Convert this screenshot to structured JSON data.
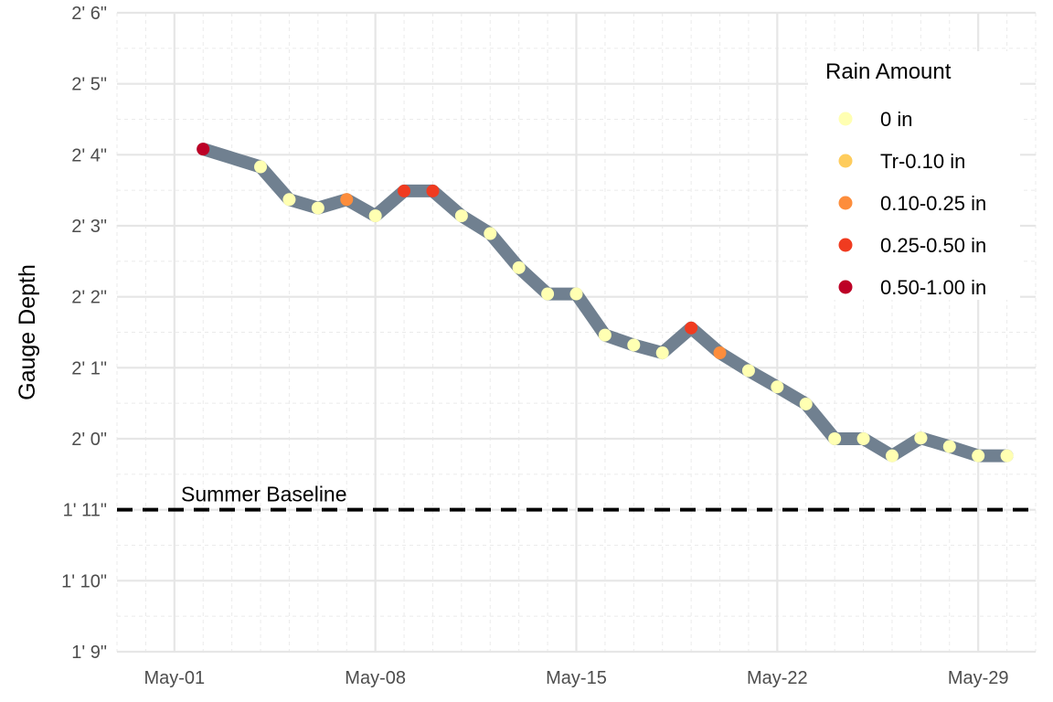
{
  "chart_data": {
    "type": "line",
    "title": "",
    "ylabel": "Gauge Depth",
    "xlabel": "",
    "y_unit": "inches",
    "ylim": [
      21,
      30
    ],
    "xlim": [
      "2024-04-29",
      "2024-05-31"
    ],
    "x_ticks": [
      {
        "date": "2024-05-01",
        "label": "May-01"
      },
      {
        "date": "2024-05-08",
        "label": "May-08"
      },
      {
        "date": "2024-05-15",
        "label": "May-15"
      },
      {
        "date": "2024-05-22",
        "label": "May-22"
      },
      {
        "date": "2024-05-29",
        "label": "May-29"
      }
    ],
    "y_ticks": [
      {
        "value": 21,
        "label": "1' 9\""
      },
      {
        "value": 22,
        "label": "1' 10\""
      },
      {
        "value": 23,
        "label": "1' 11\""
      },
      {
        "value": 24,
        "label": "2' 0\""
      },
      {
        "value": 25,
        "label": "2' 1\""
      },
      {
        "value": 26,
        "label": "2' 2\""
      },
      {
        "value": 27,
        "label": "2' 3\""
      },
      {
        "value": 28,
        "label": "2' 4\""
      },
      {
        "value": 29,
        "label": "2' 5\""
      },
      {
        "value": 30,
        "label": "2' 6\""
      }
    ],
    "grid": true,
    "line_color": "#708090",
    "baseline": {
      "value": 23,
      "label": "Summer Baseline",
      "color": "#000000"
    },
    "legend": {
      "title": "Rain Amount",
      "position": "top-right",
      "items": [
        {
          "key": "0",
          "label": "0 in",
          "color": "#FFFFB2"
        },
        {
          "key": "tr",
          "label": "Tr-0.10 in",
          "color": "#FECC5C"
        },
        {
          "key": "low",
          "label": "0.10-0.25 in",
          "color": "#FD8D3C"
        },
        {
          "key": "mid",
          "label": "0.25-0.50 in",
          "color": "#F03B20"
        },
        {
          "key": "high",
          "label": "0.50-1.00 in",
          "color": "#BD0026"
        }
      ]
    },
    "points": [
      {
        "date": "2024-05-02",
        "depth": 28.08,
        "rain": "high"
      },
      {
        "date": "2024-05-04",
        "depth": 27.83,
        "rain": "0"
      },
      {
        "date": "2024-05-05",
        "depth": 27.37,
        "rain": "0"
      },
      {
        "date": "2024-05-06",
        "depth": 27.25,
        "rain": "0"
      },
      {
        "date": "2024-05-07",
        "depth": 27.37,
        "rain": "low"
      },
      {
        "date": "2024-05-08",
        "depth": 27.14,
        "rain": "0"
      },
      {
        "date": "2024-05-09",
        "depth": 27.49,
        "rain": "mid"
      },
      {
        "date": "2024-05-10",
        "depth": 27.49,
        "rain": "mid"
      },
      {
        "date": "2024-05-11",
        "depth": 27.14,
        "rain": "0"
      },
      {
        "date": "2024-05-12",
        "depth": 26.89,
        "rain": "0"
      },
      {
        "date": "2024-05-13",
        "depth": 26.41,
        "rain": "0"
      },
      {
        "date": "2024-05-14",
        "depth": 26.04,
        "rain": "0"
      },
      {
        "date": "2024-05-15",
        "depth": 26.04,
        "rain": "0"
      },
      {
        "date": "2024-05-16",
        "depth": 25.46,
        "rain": "0"
      },
      {
        "date": "2024-05-17",
        "depth": 25.32,
        "rain": "0"
      },
      {
        "date": "2024-05-18",
        "depth": 25.21,
        "rain": "0"
      },
      {
        "date": "2024-05-19",
        "depth": 25.56,
        "rain": "mid"
      },
      {
        "date": "2024-05-20",
        "depth": 25.21,
        "rain": "low"
      },
      {
        "date": "2024-05-21",
        "depth": 24.96,
        "rain": "0"
      },
      {
        "date": "2024-05-22",
        "depth": 24.73,
        "rain": "0"
      },
      {
        "date": "2024-05-23",
        "depth": 24.49,
        "rain": "0"
      },
      {
        "date": "2024-05-24",
        "depth": 24.0,
        "rain": "0"
      },
      {
        "date": "2024-05-25",
        "depth": 24.0,
        "rain": "0"
      },
      {
        "date": "2024-05-26",
        "depth": 23.76,
        "rain": "0"
      },
      {
        "date": "2024-05-27",
        "depth": 24.01,
        "rain": "0"
      },
      {
        "date": "2024-05-27",
        "depth": 24.01,
        "rain": "0"
      },
      {
        "date": "2024-05-28",
        "depth": 23.89,
        "rain": "0"
      },
      {
        "date": "2024-05-29",
        "depth": 23.76,
        "rain": "0"
      },
      {
        "date": "2024-05-30",
        "depth": 23.76,
        "rain": "0"
      }
    ]
  }
}
